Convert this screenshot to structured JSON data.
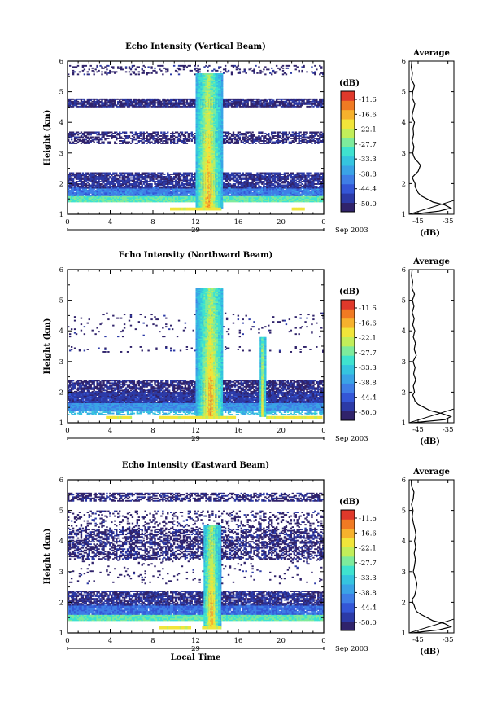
{
  "chart_data": [
    {
      "type": "heatmap",
      "title": "Echo Intensity (Vertical Beam)",
      "ylabel": "Height (km)",
      "xlabel": "",
      "x_ticks": [
        "0",
        "4",
        "8",
        "12",
        "16",
        "20",
        "0"
      ],
      "y_ticks": [
        "1",
        "2",
        "3",
        "4",
        "5",
        "6"
      ],
      "xlim": [
        0,
        24
      ],
      "ylim": [
        1,
        6
      ],
      "date_label": "29",
      "date_suffix": "Sep 2003",
      "colorbar": {
        "unit": "(dB)",
        "tick_labels": [
          "-11.6",
          "-16.6",
          "-22.1",
          "-27.7",
          "-33.3",
          "-38.8",
          "-44.4",
          "-50.0"
        ]
      },
      "convection": [
        {
          "start": 12.0,
          "end": 14.6,
          "top": 5.6,
          "peak": 13.2
        }
      ],
      "surface_echo": [
        {
          "start": 9.6,
          "end": 14.4
        },
        {
          "start": 21.0,
          "end": 22.2
        }
      ],
      "layers": [
        {
          "bottom": 1.4,
          "top": 1.6,
          "density": 1.0,
          "level": 0.55
        },
        {
          "bottom": 1.6,
          "top": 1.85,
          "density": 0.97,
          "level": 0.25
        },
        {
          "bottom": 1.85,
          "top": 2.35,
          "density": 0.78,
          "level": 0.06
        },
        {
          "bottom": 3.3,
          "top": 3.7,
          "density": 0.58,
          "level": 0.02
        },
        {
          "bottom": 4.5,
          "top": 4.75,
          "density": 0.82,
          "level": 0.03
        },
        {
          "bottom": 5.55,
          "top": 5.85,
          "density": 0.22,
          "level": 0.0
        }
      ],
      "average": {
        "title": "Average",
        "xlabel": "(dB)",
        "x_ticks": [
          "-45",
          "-35"
        ],
        "xlim": [
          -48,
          -33
        ],
        "ylim": [
          1,
          6
        ],
        "y_ticks": [
          "1",
          "2",
          "3",
          "4",
          "5",
          "6"
        ],
        "height": [
          1.0,
          1.1,
          1.2,
          1.3,
          1.4,
          1.5,
          1.6,
          1.7,
          1.8,
          1.9,
          2.0,
          2.1,
          2.2,
          2.3,
          2.4,
          2.5,
          2.6,
          2.7,
          2.8,
          2.9,
          3.0,
          3.2,
          3.4,
          3.6,
          3.8,
          4.0,
          4.2,
          4.4,
          4.6,
          4.8,
          5.0,
          5.2,
          5.4,
          5.6,
          5.8,
          6.0
        ],
        "value": [
          -47,
          -38,
          -34,
          -36,
          -40,
          -42,
          -44,
          -45,
          -45.5,
          -46,
          -46,
          -46.5,
          -47,
          -46,
          -45,
          -44.6,
          -44.2,
          -45,
          -46,
          -46.5,
          -46.8,
          -46.4,
          -47,
          -46.5,
          -46.7,
          -46.2,
          -47.1,
          -46.6,
          -46.1,
          -47,
          -46.8,
          -46.2,
          -47.2,
          -46.9,
          -47.3,
          -47.1
        ],
        "ref_line": [
          {
            "x": -48,
            "y": 1.0
          },
          {
            "x": -33,
            "y": 1.45
          }
        ]
      }
    },
    {
      "type": "heatmap",
      "title": "Echo Intensity (Northward Beam)",
      "ylabel": "Height (km)",
      "xlabel": "",
      "x_ticks": [
        "0",
        "4",
        "8",
        "12",
        "16",
        "20",
        "0"
      ],
      "y_ticks": [
        "1",
        "2",
        "3",
        "4",
        "5",
        "6"
      ],
      "xlim": [
        0,
        24
      ],
      "ylim": [
        1,
        6
      ],
      "date_label": "29",
      "date_suffix": "Sep 2003",
      "colorbar": {
        "unit": "(dB)",
        "tick_labels": [
          "-11.6",
          "-16.6",
          "-22.1",
          "-27.7",
          "-33.3",
          "-38.8",
          "-44.4",
          "-50.0"
        ]
      },
      "convection": [
        {
          "start": 12.0,
          "end": 14.6,
          "top": 5.4,
          "peak": 13.4
        },
        {
          "start": 18.0,
          "end": 18.6,
          "top": 3.8,
          "peak": 18.3
        }
      ],
      "surface_echo": [
        {
          "start": 3.6,
          "end": 6.0
        },
        {
          "start": 8.6,
          "end": 15.8
        },
        {
          "start": 18.6,
          "end": 23.8
        }
      ],
      "layers": [
        {
          "bottom": 1.25,
          "top": 1.4,
          "density": 0.5,
          "level": 0.4
        },
        {
          "bottom": 1.4,
          "top": 1.65,
          "density": 1.0,
          "level": 0.3
        },
        {
          "bottom": 1.65,
          "top": 2.0,
          "density": 0.95,
          "level": 0.08
        },
        {
          "bottom": 2.0,
          "top": 2.4,
          "density": 0.75,
          "level": 0.03
        },
        {
          "bottom": 3.3,
          "top": 3.5,
          "density": 0.08,
          "level": 0.0
        },
        {
          "bottom": 3.8,
          "top": 4.6,
          "density": 0.05,
          "level": 0.0
        }
      ],
      "average": {
        "title": "Average",
        "xlabel": "(dB)",
        "x_ticks": [
          "-45",
          "-35"
        ],
        "xlim": [
          -48,
          -33
        ],
        "ylim": [
          1,
          6
        ],
        "y_ticks": [
          "1",
          "2",
          "3",
          "4",
          "5",
          "6"
        ],
        "height": [
          1.0,
          1.1,
          1.2,
          1.3,
          1.4,
          1.5,
          1.6,
          1.7,
          1.8,
          1.9,
          2.0,
          2.2,
          2.4,
          2.6,
          2.8,
          3.0,
          3.2,
          3.4,
          3.6,
          3.8,
          4.0,
          4.2,
          4.4,
          4.6,
          4.8,
          5.0,
          5.2,
          5.4,
          5.6,
          5.8,
          6.0
        ],
        "value": [
          -47,
          -36,
          -34,
          -37,
          -41,
          -43,
          -45,
          -46,
          -46.3,
          -46.8,
          -46.2,
          -46.6,
          -45.8,
          -46.5,
          -46,
          -46.7,
          -45.6,
          -46.3,
          -45.9,
          -46.6,
          -46.1,
          -46.8,
          -46.3,
          -47,
          -46.4,
          -46.9,
          -46.2,
          -47.1,
          -46.8,
          -47.2,
          -47
        ]
      }
    },
    {
      "type": "heatmap",
      "title": "Echo Intensity (Eastward Beam)",
      "ylabel": "Height (km)",
      "xlabel": "Local Time",
      "x_ticks": [
        "0",
        "4",
        "8",
        "12",
        "16",
        "20",
        "0"
      ],
      "y_ticks": [
        "1",
        "2",
        "3",
        "4",
        "5",
        "6"
      ],
      "xlim": [
        0,
        24
      ],
      "ylim": [
        1,
        6
      ],
      "date_label": "29",
      "date_suffix": "Sep 2003",
      "colorbar": {
        "unit": "(dB)",
        "tick_labels": [
          "-11.6",
          "-16.6",
          "-22.1",
          "-27.7",
          "-33.3",
          "-38.8",
          "-44.4",
          "-50.0"
        ]
      },
      "convection": [
        {
          "start": 12.8,
          "end": 14.4,
          "top": 4.5,
          "peak": 13.5
        }
      ],
      "surface_echo": [
        {
          "start": 8.6,
          "end": 11.6
        },
        {
          "start": 12.6,
          "end": 14.4
        }
      ],
      "layers": [
        {
          "bottom": 1.4,
          "top": 1.6,
          "density": 1.0,
          "level": 0.55
        },
        {
          "bottom": 1.6,
          "top": 1.9,
          "density": 0.97,
          "level": 0.22
        },
        {
          "bottom": 1.9,
          "top": 2.35,
          "density": 0.78,
          "level": 0.05
        },
        {
          "bottom": 2.6,
          "top": 3.4,
          "density": 0.05,
          "level": 0.0
        },
        {
          "bottom": 3.4,
          "top": 4.4,
          "density": 0.55,
          "level": 0.02
        },
        {
          "bottom": 4.4,
          "top": 5.0,
          "density": 0.2,
          "level": 0.0
        },
        {
          "bottom": 5.3,
          "top": 5.55,
          "density": 0.55,
          "level": 0.02
        }
      ],
      "average": {
        "title": "Average",
        "xlabel": "(dB)",
        "x_ticks": [
          "-45",
          "-35"
        ],
        "xlim": [
          -48,
          -33
        ],
        "ylim": [
          1,
          6
        ],
        "y_ticks": [
          "1",
          "2",
          "3",
          "4",
          "5",
          "6"
        ],
        "height": [
          1.0,
          1.1,
          1.2,
          1.3,
          1.4,
          1.5,
          1.6,
          1.7,
          1.8,
          1.9,
          2.0,
          2.1,
          2.2,
          2.4,
          2.6,
          2.8,
          3.0,
          3.2,
          3.4,
          3.6,
          3.8,
          4.0,
          4.2,
          4.4,
          4.6,
          4.8,
          5.0,
          5.2,
          5.4,
          5.6,
          5.8,
          6.0
        ],
        "value": [
          -47,
          -38,
          -34,
          -36,
          -40,
          -42,
          -44,
          -45.5,
          -46,
          -46.3,
          -46.8,
          -47,
          -46.2,
          -45.7,
          -45.4,
          -45.9,
          -46.6,
          -46.2,
          -45.9,
          -46.3,
          -45.8,
          -46.2,
          -45.7,
          -46.1,
          -46.6,
          -47,
          -46.7,
          -47.2,
          -46.6,
          -46.4,
          -47.2,
          -47.3
        ]
      }
    }
  ],
  "colors": {
    "palette": [
      "#30236b",
      "#2c3aa6",
      "#3456d6",
      "#3f7ee6",
      "#3aa3e6",
      "#35c4df",
      "#3fe2cf",
      "#7eeb9c",
      "#c2ee5a",
      "#f1e53a",
      "#f6b12d",
      "#f07a23",
      "#e0392b"
    ]
  }
}
